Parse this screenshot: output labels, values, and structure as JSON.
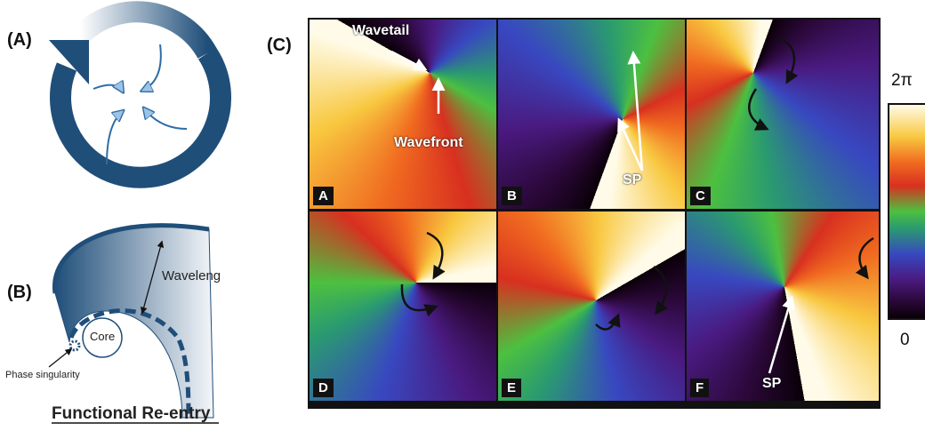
{
  "figure": {
    "panel_labels": [
      "(A)",
      "(B)",
      "(C)"
    ],
    "diagram_b": {
      "wavelength": "Waveleng",
      "core": "Core",
      "phase_singularity": "Phase singularity",
      "caption": "Functional Re-entry"
    },
    "maps": [
      {
        "label": "A",
        "annotations": [
          "Wavetail",
          "Wavefront"
        ]
      },
      {
        "label": "B",
        "annotations": [
          "SP"
        ]
      },
      {
        "label": "C"
      },
      {
        "label": "D"
      },
      {
        "label": "E"
      },
      {
        "label": "F",
        "annotations": [
          "SP"
        ]
      }
    ],
    "colorbar": {
      "max": "2π",
      "min": "0"
    }
  }
}
